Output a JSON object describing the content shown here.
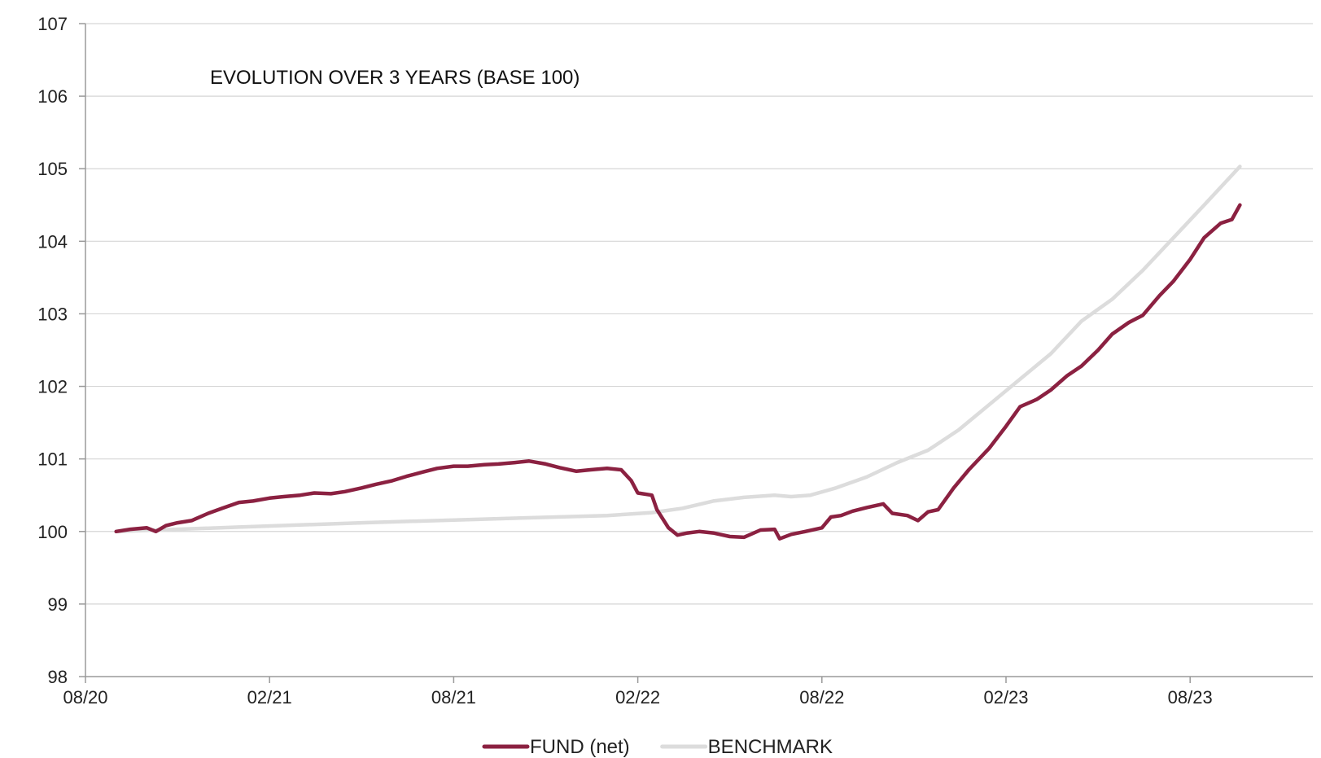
{
  "chart_data": {
    "type": "line",
    "title": "EVOLUTION OVER 3 YEARS (BASE 100)",
    "xlabel": "",
    "ylabel": "",
    "ylim": [
      98,
      107
    ],
    "yticks": [
      "98",
      "99",
      "100",
      "101",
      "102",
      "103",
      "104",
      "105",
      "106",
      "107"
    ],
    "xlim": [
      "2020-08",
      "2023-12"
    ],
    "xticks": [
      "08/20",
      "02/21",
      "08/21",
      "02/22",
      "08/22",
      "02/23",
      "08/23"
    ],
    "grid": "horizontal",
    "legend_position": "bottom-center",
    "series": [
      {
        "name": "FUND (net)",
        "color": "#8b2141",
        "points": [
          [
            "2020-09-01",
            100.0
          ],
          [
            "2020-09-15",
            100.03
          ],
          [
            "2020-10-01",
            100.05
          ],
          [
            "2020-10-10",
            100.0
          ],
          [
            "2020-10-20",
            100.08
          ],
          [
            "2020-11-01",
            100.12
          ],
          [
            "2020-11-15",
            100.15
          ],
          [
            "2020-12-01",
            100.25
          ],
          [
            "2020-12-15",
            100.32
          ],
          [
            "2021-01-01",
            100.4
          ],
          [
            "2021-01-15",
            100.42
          ],
          [
            "2021-02-01",
            100.46
          ],
          [
            "2021-02-15",
            100.48
          ],
          [
            "2021-03-01",
            100.5
          ],
          [
            "2021-03-15",
            100.53
          ],
          [
            "2021-04-01",
            100.52
          ],
          [
            "2021-04-15",
            100.55
          ],
          [
            "2021-05-01",
            100.6
          ],
          [
            "2021-05-15",
            100.65
          ],
          [
            "2021-06-01",
            100.7
          ],
          [
            "2021-06-15",
            100.76
          ],
          [
            "2021-07-01",
            100.82
          ],
          [
            "2021-07-15",
            100.87
          ],
          [
            "2021-08-01",
            100.9
          ],
          [
            "2021-08-15",
            100.9
          ],
          [
            "2021-09-01",
            100.92
          ],
          [
            "2021-09-15",
            100.93
          ],
          [
            "2021-10-01",
            100.95
          ],
          [
            "2021-10-15",
            100.97
          ],
          [
            "2021-11-01",
            100.93
          ],
          [
            "2021-11-15",
            100.88
          ],
          [
            "2021-12-01",
            100.83
          ],
          [
            "2021-12-15",
            100.85
          ],
          [
            "2022-01-01",
            100.87
          ],
          [
            "2022-01-15",
            100.85
          ],
          [
            "2022-01-25",
            100.7
          ],
          [
            "2022-02-01",
            100.53
          ],
          [
            "2022-02-15",
            100.5
          ],
          [
            "2022-02-20",
            100.3
          ],
          [
            "2022-03-01",
            100.05
          ],
          [
            "2022-03-10",
            99.95
          ],
          [
            "2022-03-20",
            99.98
          ],
          [
            "2022-04-01",
            100.0
          ],
          [
            "2022-04-15",
            99.98
          ],
          [
            "2022-05-01",
            99.93
          ],
          [
            "2022-05-15",
            99.92
          ],
          [
            "2022-06-01",
            100.02
          ],
          [
            "2022-06-15",
            100.03
          ],
          [
            "2022-06-20",
            99.9
          ],
          [
            "2022-07-01",
            99.96
          ],
          [
            "2022-07-15",
            100.0
          ],
          [
            "2022-08-01",
            100.05
          ],
          [
            "2022-08-10",
            100.2
          ],
          [
            "2022-08-20",
            100.22
          ],
          [
            "2022-09-01",
            100.28
          ],
          [
            "2022-09-15",
            100.33
          ],
          [
            "2022-10-01",
            100.38
          ],
          [
            "2022-10-10",
            100.25
          ],
          [
            "2022-10-25",
            100.22
          ],
          [
            "2022-11-05",
            100.15
          ],
          [
            "2022-11-15",
            100.27
          ],
          [
            "2022-11-25",
            100.3
          ],
          [
            "2022-12-10",
            100.6
          ],
          [
            "2022-12-25",
            100.85
          ],
          [
            "2023-01-15",
            101.15
          ],
          [
            "2023-02-01",
            101.45
          ],
          [
            "2023-02-15",
            101.72
          ],
          [
            "2023-03-01",
            101.82
          ],
          [
            "2023-03-15",
            101.95
          ],
          [
            "2023-04-01",
            102.15
          ],
          [
            "2023-04-15",
            102.28
          ],
          [
            "2023-05-01",
            102.5
          ],
          [
            "2023-05-15",
            102.72
          ],
          [
            "2023-06-01",
            102.88
          ],
          [
            "2023-06-15",
            102.98
          ],
          [
            "2023-07-01",
            103.25
          ],
          [
            "2023-07-15",
            103.45
          ],
          [
            "2023-08-01",
            103.75
          ],
          [
            "2023-08-15",
            104.05
          ],
          [
            "2023-09-01",
            104.25
          ],
          [
            "2023-09-12",
            104.3
          ],
          [
            "2023-09-20",
            104.5
          ]
        ]
      },
      {
        "name": "BENCHMARK",
        "color": "#dcdcdc",
        "points": [
          [
            "2020-09-01",
            100.0
          ],
          [
            "2021-01-01",
            100.06
          ],
          [
            "2021-05-01",
            100.12
          ],
          [
            "2021-09-01",
            100.17
          ],
          [
            "2022-01-01",
            100.22
          ],
          [
            "2022-02-15",
            100.26
          ],
          [
            "2022-03-15",
            100.32
          ],
          [
            "2022-04-15",
            100.42
          ],
          [
            "2022-05-15",
            100.47
          ],
          [
            "2022-06-15",
            100.5
          ],
          [
            "2022-07-01",
            100.48
          ],
          [
            "2022-07-20",
            100.5
          ],
          [
            "2022-08-15",
            100.6
          ],
          [
            "2022-09-15",
            100.75
          ],
          [
            "2022-10-15",
            100.95
          ],
          [
            "2022-11-15",
            101.12
          ],
          [
            "2022-12-15",
            101.4
          ],
          [
            "2023-01-15",
            101.75
          ],
          [
            "2023-02-15",
            102.1
          ],
          [
            "2023-03-15",
            102.45
          ],
          [
            "2023-04-15",
            102.9
          ],
          [
            "2023-05-15",
            103.2
          ],
          [
            "2023-06-15",
            103.6
          ],
          [
            "2023-07-15",
            104.05
          ],
          [
            "2023-08-15",
            104.5
          ],
          [
            "2023-09-20",
            105.03
          ]
        ]
      }
    ]
  }
}
